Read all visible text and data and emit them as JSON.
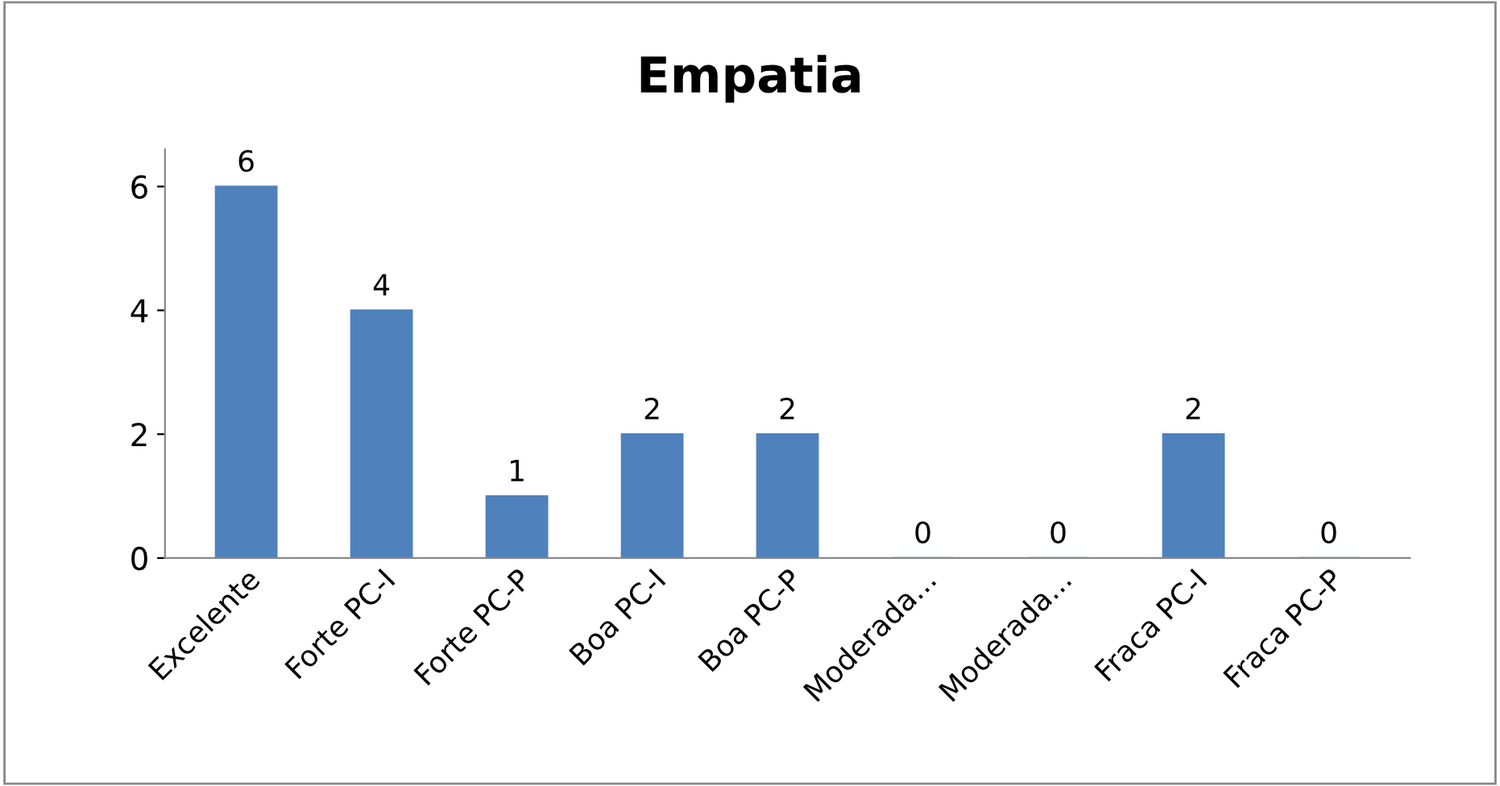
{
  "chart_data": {
    "type": "bar",
    "title": "Empatia",
    "categories": [
      "Excelente",
      "Forte PC-I",
      "Forte PC-P",
      "Boa PC-I",
      "Boa PC-P",
      "Moderada...",
      "Moderada...",
      "Fraca PC-I",
      "Fraca PC-P"
    ],
    "values": [
      6,
      4,
      1,
      2,
      2,
      0,
      0,
      2,
      0
    ],
    "color": "#4f81bd",
    "ylim": [
      0,
      6.6
    ],
    "yticks": [
      0,
      2,
      4,
      6
    ],
    "data_labels": true,
    "grid": false,
    "legend": false
  }
}
